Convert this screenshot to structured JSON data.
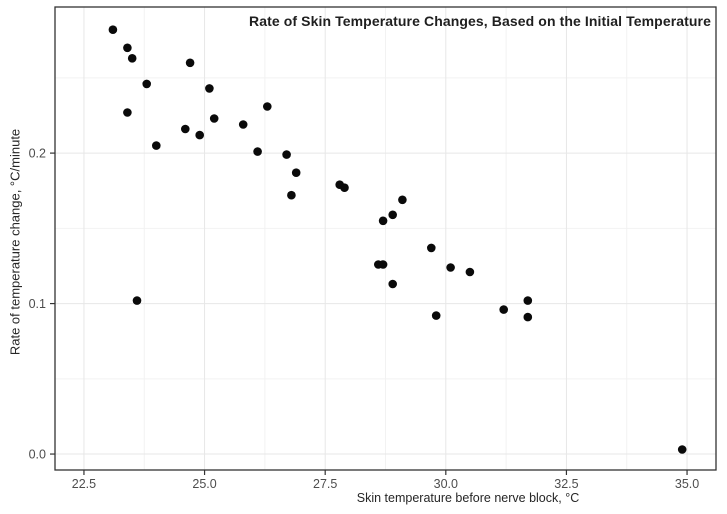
{
  "chart_data": {
    "type": "scatter",
    "title": "Rate of Skin Temperature Changes, Based on the Initial Temperature",
    "xlabel": "Skin temperature before nerve block, °C",
    "ylabel": "Rate of temperature change, °C/minute",
    "xlim": [
      21.9,
      35.6
    ],
    "ylim": [
      -0.0106,
      0.2971
    ],
    "x_major_ticks": [
      22.5,
      25.0,
      27.5,
      30.0,
      32.5,
      35.0
    ],
    "x_tick_labels": [
      "22.5",
      "25.0",
      "27.5",
      "30.0",
      "32.5",
      "35.0"
    ],
    "x_minor_ticks": [
      23.75,
      26.25,
      28.75,
      31.25,
      33.75
    ],
    "y_major_ticks": [
      0.0,
      0.1,
      0.2
    ],
    "y_tick_labels": [
      "0.0",
      "0.1",
      "0.2"
    ],
    "y_minor_ticks": [
      0.05,
      0.15,
      0.25
    ],
    "grid": true,
    "legend": false,
    "point_radius": 4.3,
    "colors": {
      "background": "#ffffff",
      "point": "#0a0a0a",
      "panel_border": "#333333",
      "grid_major": "#e7e7e7",
      "grid_minor": "#f2f2f2",
      "tick_mark": "#333333",
      "tick_label": "#4d4d4d",
      "axis_title": "#262626",
      "title": "#1f1f1f"
    },
    "points": [
      [
        23.1,
        0.282
      ],
      [
        23.4,
        0.27
      ],
      [
        23.4,
        0.227
      ],
      [
        23.5,
        0.263
      ],
      [
        23.6,
        0.102
      ],
      [
        23.8,
        0.246
      ],
      [
        24.0,
        0.205
      ],
      [
        24.6,
        0.216
      ],
      [
        24.7,
        0.26
      ],
      [
        24.9,
        0.212
      ],
      [
        25.1,
        0.243
      ],
      [
        25.2,
        0.223
      ],
      [
        25.8,
        0.219
      ],
      [
        26.1,
        0.201
      ],
      [
        26.3,
        0.231
      ],
      [
        26.7,
        0.199
      ],
      [
        26.8,
        0.172
      ],
      [
        26.9,
        0.187
      ],
      [
        27.8,
        0.179
      ],
      [
        27.9,
        0.177
      ],
      [
        28.6,
        0.126
      ],
      [
        28.7,
        0.155
      ],
      [
        28.7,
        0.126
      ],
      [
        28.9,
        0.159
      ],
      [
        28.9,
        0.113
      ],
      [
        29.1,
        0.169
      ],
      [
        29.7,
        0.137
      ],
      [
        29.8,
        0.092
      ],
      [
        30.1,
        0.124
      ],
      [
        30.5,
        0.121
      ],
      [
        31.2,
        0.096
      ],
      [
        31.7,
        0.102
      ],
      [
        31.7,
        0.091
      ],
      [
        34.9,
        0.003
      ]
    ]
  }
}
